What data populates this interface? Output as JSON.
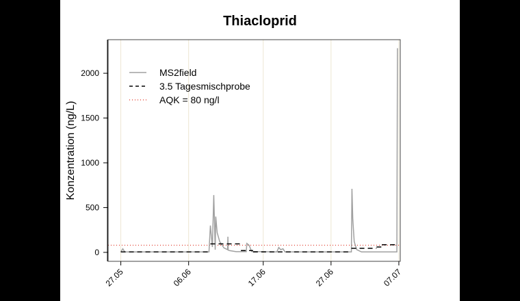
{
  "chart_data": {
    "type": "line",
    "title": "Thiacloprid",
    "xlabel": "",
    "ylabel": "Konzentration (ng/L)",
    "x_ticks": [
      "27.05",
      "06.06",
      "17.06",
      "27.06",
      "07.07"
    ],
    "y_ticks": [
      0,
      500,
      1000,
      1500,
      2000
    ],
    "ylim": [
      -100,
      2375
    ],
    "xlim": [
      "25.05 03:00",
      "07.07 05:00"
    ],
    "grid": "vertical lines at x ticks",
    "legend_position": "top-left",
    "series": [
      {
        "name": "MS2field",
        "style": "solid",
        "color": "#a0a0a0",
        "points": [
          [
            "27.05 00:00",
            5
          ],
          [
            "27.05 07:00",
            40
          ],
          [
            "27.05 14:00",
            5
          ],
          [
            "09.06 00:00",
            5
          ],
          [
            "09.06 05:00",
            300
          ],
          [
            "09.06 12:00",
            60
          ],
          [
            "09.06 17:00",
            640
          ],
          [
            "09.06 22:00",
            30
          ],
          [
            "10.06 00:00",
            400
          ],
          [
            "10.06 05:00",
            220
          ],
          [
            "10.06 14:00",
            120
          ],
          [
            "11.06 05:00",
            50
          ],
          [
            "11.06 18:00",
            30
          ],
          [
            "11.06 19:00",
            175
          ],
          [
            "11.06 20:00",
            25
          ],
          [
            "12.06 00:00",
            20
          ],
          [
            "13.06 00:00",
            8
          ],
          [
            "14.06 12:00",
            8
          ],
          [
            "14.06 14:00",
            100
          ],
          [
            "14.06 22:00",
            80
          ],
          [
            "15.06 07:00",
            10
          ],
          [
            "19.06 00:00",
            5
          ],
          [
            "19.06 07:00",
            55
          ],
          [
            "19.06 14:00",
            30
          ],
          [
            "19.06 22:00",
            40
          ],
          [
            "20.06 05:00",
            5
          ],
          [
            "30.06 00:00",
            5
          ],
          [
            "30.06 02:00",
            710
          ],
          [
            "30.06 05:00",
            370
          ],
          [
            "30.06 10:00",
            120
          ],
          [
            "30.06 19:00",
            30
          ],
          [
            "01.07 12:00",
            5
          ],
          [
            "06.07 17:00",
            5
          ],
          [
            "06.07 19:00",
            2280
          ]
        ]
      },
      {
        "name": "3.5 Tagesmischprobe",
        "style": "dashed",
        "color": "#000000",
        "steps": [
          [
            "27.05 00:00",
            "09.06 05:00",
            5
          ],
          [
            "09.06 05:00",
            "13.06 17:00",
            95
          ],
          [
            "13.06 17:00",
            "15.06 12:00",
            20
          ],
          [
            "15.06 12:00",
            "30.06 00:00",
            5
          ],
          [
            "30.06 00:00",
            "03.07 17:00",
            45
          ],
          [
            "03.07 17:00",
            "04.07 12:00",
            60
          ],
          [
            "04.07 12:00",
            "06.07 17:00",
            85
          ]
        ]
      },
      {
        "name": "AQK = 80 ng/l",
        "style": "dotted",
        "color": "#e03020",
        "value": 80
      }
    ]
  }
}
